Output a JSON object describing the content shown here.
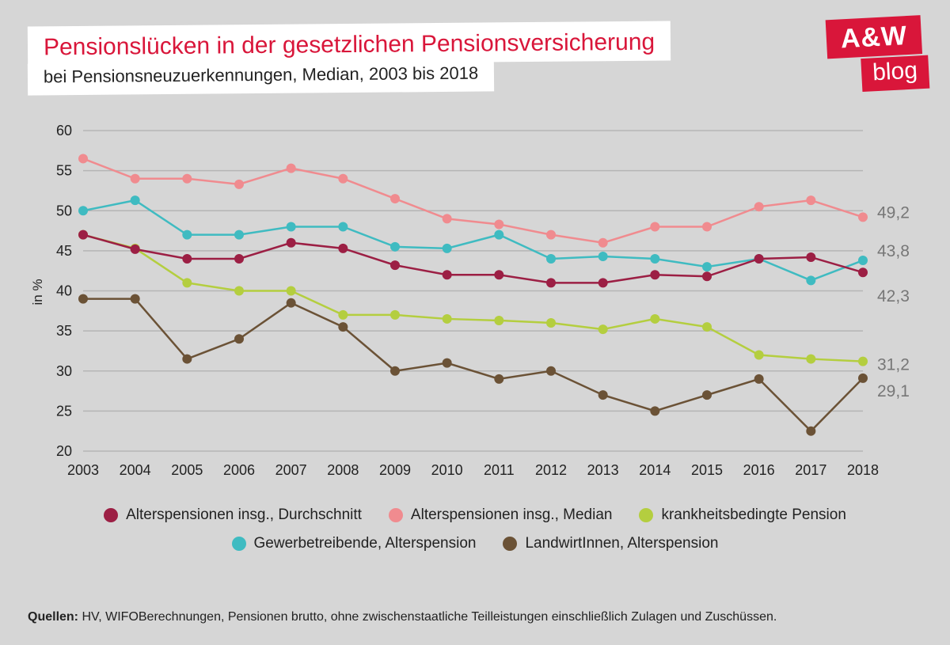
{
  "header": {
    "title": "Pensionslücken in der gesetzlichen Pensionsversicherung",
    "title_color": "#d9163a",
    "subtitle": "bei Pensionsneuzuerkennungen, Median, 2003 bis 2018"
  },
  "logo": {
    "top": "A&W",
    "bottom": "blog",
    "bg": "#d9163a"
  },
  "chart": {
    "type": "line",
    "background_color": "#d6d6d6",
    "grid_color": "#b5b5b5",
    "axis_text_color": "#222222",
    "ylabel": "in %",
    "label_fontsize": 17,
    "tick_fontsize": 18,
    "xlim": [
      2003,
      2018
    ],
    "ylim": [
      20,
      60
    ],
    "ytick_step": 5,
    "yticks": [
      20,
      25,
      30,
      35,
      40,
      45,
      50,
      55,
      60
    ],
    "categories": [
      2003,
      2004,
      2005,
      2006,
      2007,
      2008,
      2009,
      2010,
      2011,
      2012,
      2013,
      2014,
      2015,
      2016,
      2017,
      2018
    ],
    "line_width": 2.5,
    "marker_size": 6,
    "series": [
      {
        "name": "Alterspensionen insg., Durchschnitt",
        "color": "#9c1f44",
        "values": [
          47.0,
          45.2,
          44.0,
          44.0,
          46.0,
          45.3,
          43.2,
          42.0,
          42.0,
          41.0,
          41.0,
          42.0,
          41.8,
          44.0,
          44.2,
          42.3
        ],
        "end_label": "42,3"
      },
      {
        "name": "Alterspensionen insg., Median",
        "color": "#f08b8f",
        "values": [
          56.5,
          54.0,
          54.0,
          53.3,
          55.3,
          54.0,
          51.5,
          49.0,
          48.3,
          47.0,
          46.0,
          48.0,
          48.0,
          50.5,
          51.3,
          49.2
        ],
        "end_label": "49,2"
      },
      {
        "name": "krankheitsbedingte Pension",
        "color": "#b4ce3f",
        "values": [
          47.0,
          45.3,
          41.0,
          40.0,
          40.0,
          37.0,
          37.0,
          36.5,
          36.3,
          36.0,
          35.2,
          36.5,
          35.5,
          32.0,
          31.5,
          31.2
        ],
        "end_label": "31,2"
      },
      {
        "name": "Gewerbetreibende, Alterspension",
        "color": "#3fbbc1",
        "values": [
          50.0,
          51.3,
          47.0,
          47.0,
          48.0,
          48.0,
          45.5,
          45.3,
          47.0,
          44.0,
          44.3,
          44.0,
          43.0,
          44.0,
          41.3,
          43.8
        ],
        "end_label": "43,8"
      },
      {
        "name": "LandwirtInnen, Alterspension",
        "color": "#6b5236",
        "values": [
          39.0,
          39.0,
          31.5,
          34.0,
          38.5,
          35.5,
          30.0,
          31.0,
          29.0,
          30.0,
          27.0,
          25.0,
          27.0,
          29.0,
          22.5,
          29.1
        ],
        "end_label": "29,1"
      }
    ],
    "end_label_fontsize": 21,
    "end_label_color": "#777777"
  },
  "footnote": {
    "label": "Quellen:",
    "text": "HV, WIFOBerechnungen, Pensionen brutto, ohne zwischenstaatliche Teilleistungen einschließlich Zulagen und Zuschüssen."
  }
}
